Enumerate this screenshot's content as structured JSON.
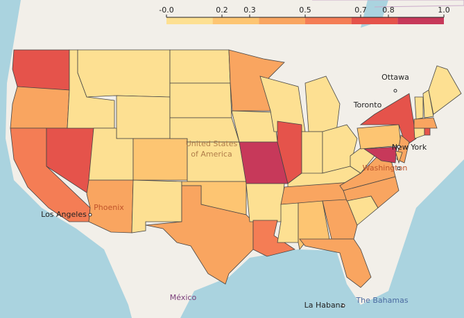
{
  "chart_data": {
    "type": "choropleth",
    "colorbar": {
      "range": [
        0,
        1
      ],
      "ticks": [
        {
          "value": 0,
          "label": "-0.0"
        },
        0.2,
        0.3,
        0.5,
        0.7,
        0.8,
        {
          "value": 1,
          "label": "1.0"
        }
      ],
      "colors": [
        "#fde092",
        "#fdc572",
        "#f9a560",
        "#f47d55",
        "#e5534b",
        "#c7395a"
      ]
    },
    "values": [
      0.75,
      0.45,
      0.6,
      0.75,
      0.1,
      0.1,
      0.1,
      0.1,
      0.4,
      0.3,
      0.1,
      0.1,
      0.1,
      0.1,
      0.1,
      0.3,
      0.45,
      0.45,
      0.1,
      0.9,
      0.1,
      0.6,
      0.1,
      0.75,
      0.1,
      0.1,
      0.1,
      0.1,
      0.4,
      0.1,
      0.3,
      0.4,
      0.45,
      0.1,
      0.4,
      0.4,
      0.1,
      0.3,
      0.75,
      0.9,
      0.45,
      0.3,
      0.1,
      0.7,
      0.45,
      0.1,
      0.1,
      0.1
    ],
    "map_labels": [
      "Ottawa",
      "Toronto",
      "New York",
      "Washington",
      "United States",
      "of America",
      "Phoenix",
      "Los Angeles",
      "México",
      "La Habana",
      "The Bahamas"
    ]
  }
}
